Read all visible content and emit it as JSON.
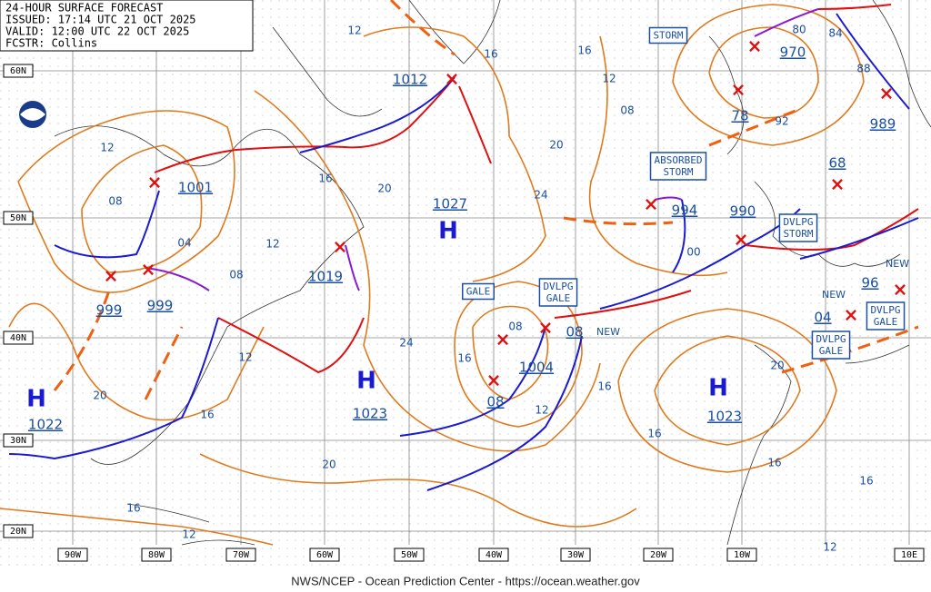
{
  "header": [
    "24-HOUR SURFACE FORECAST",
    "ISSUED: 17:14 UTC 21 OCT 2025",
    "VALID:  12:00 UTC 22 OCT 2025",
    "FCSTR:  Collins"
  ],
  "latitude_labels": [
    "60N",
    "50N",
    "40N",
    "30N",
    "20N"
  ],
  "longitude_labels": [
    "90W",
    "80W",
    "70W",
    "60W",
    "50W",
    "40W",
    "30W",
    "20W",
    "10W",
    "10E"
  ],
  "high_centers": [
    {
      "symbol": "H",
      "pressure": "1022"
    },
    {
      "symbol": "H",
      "pressure": "1027"
    },
    {
      "symbol": "H",
      "pressure": "1023"
    },
    {
      "symbol": "H",
      "pressure": "1023"
    }
  ],
  "low_pressure_labels": [
    "1012",
    "1001",
    "999",
    "999",
    "1019",
    "1004",
    "08",
    "08",
    "994",
    "990",
    "970",
    "78",
    "989",
    "68",
    "96",
    "04"
  ],
  "isobar_labels": [
    "12",
    "16",
    "16",
    "12",
    "08",
    "20",
    "24",
    "20",
    "16",
    "12",
    "08",
    "04",
    "12",
    "08",
    "12",
    "20",
    "16",
    "24",
    "16",
    "08",
    "12",
    "16",
    "20",
    "16",
    "12",
    "00",
    "16",
    "20",
    "16",
    "16",
    "12",
    "80",
    "84",
    "88",
    "92"
  ],
  "warning_boxes": [
    [
      "STORM"
    ],
    [
      "ABSORBED",
      "STORM"
    ],
    [
      "GALE"
    ],
    [
      "DVLPG",
      "GALE"
    ],
    [
      "DVLPG",
      "STORM"
    ],
    [
      "DVLPG",
      "GALE"
    ],
    [
      "DVLPG",
      "GALE"
    ]
  ],
  "new_labels": [
    "NEW",
    "NEW",
    "NEW"
  ],
  "footer": "NWS/NCEP - Ocean Prediction Center - https://ocean.weather.gov"
}
